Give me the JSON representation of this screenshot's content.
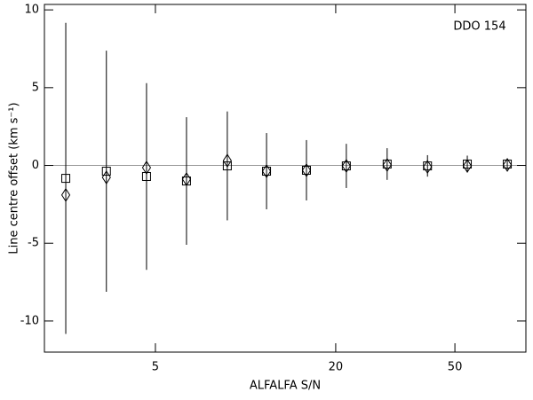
{
  "chart_data": {
    "type": "scatter",
    "annotation": "DDO 154",
    "xlabel": "ALFALFA S/N",
    "ylabel": "Line centre offset (km s⁻¹)",
    "x": [
      2.51,
      3.43,
      4.67,
      6.35,
      8.69,
      11.75,
      15.97,
      21.7,
      29.7,
      40.5,
      55.0,
      74.8
    ],
    "series": [
      {
        "marker": "square",
        "color": "#000000",
        "values": [
          -0.83,
          -0.37,
          -0.71,
          -1.0,
          -0.03,
          -0.37,
          -0.31,
          -0.03,
          0.09,
          -0.03,
          0.09,
          0.09
        ],
        "errors": [
          10.0,
          7.75,
          6.0,
          4.1,
          3.5,
          2.45,
          1.94,
          1.42,
          1.02,
          0.69,
          0.54,
          0.37
        ]
      },
      {
        "marker": "diamond",
        "color": "#000000",
        "values": [
          -1.9,
          -0.77,
          -0.14,
          -0.88,
          0.31,
          -0.37,
          -0.31,
          -0.03,
          0.03,
          -0.09,
          -0.03,
          0.03
        ]
      }
    ],
    "reference_line": 0,
    "xscale": "log",
    "xlim": [
      2.13,
      86.3
    ],
    "xticks": [
      5,
      20,
      50
    ],
    "ylim": [
      -12.0,
      10.35
    ],
    "yticks": [
      -10,
      -5,
      0,
      5,
      10
    ]
  }
}
